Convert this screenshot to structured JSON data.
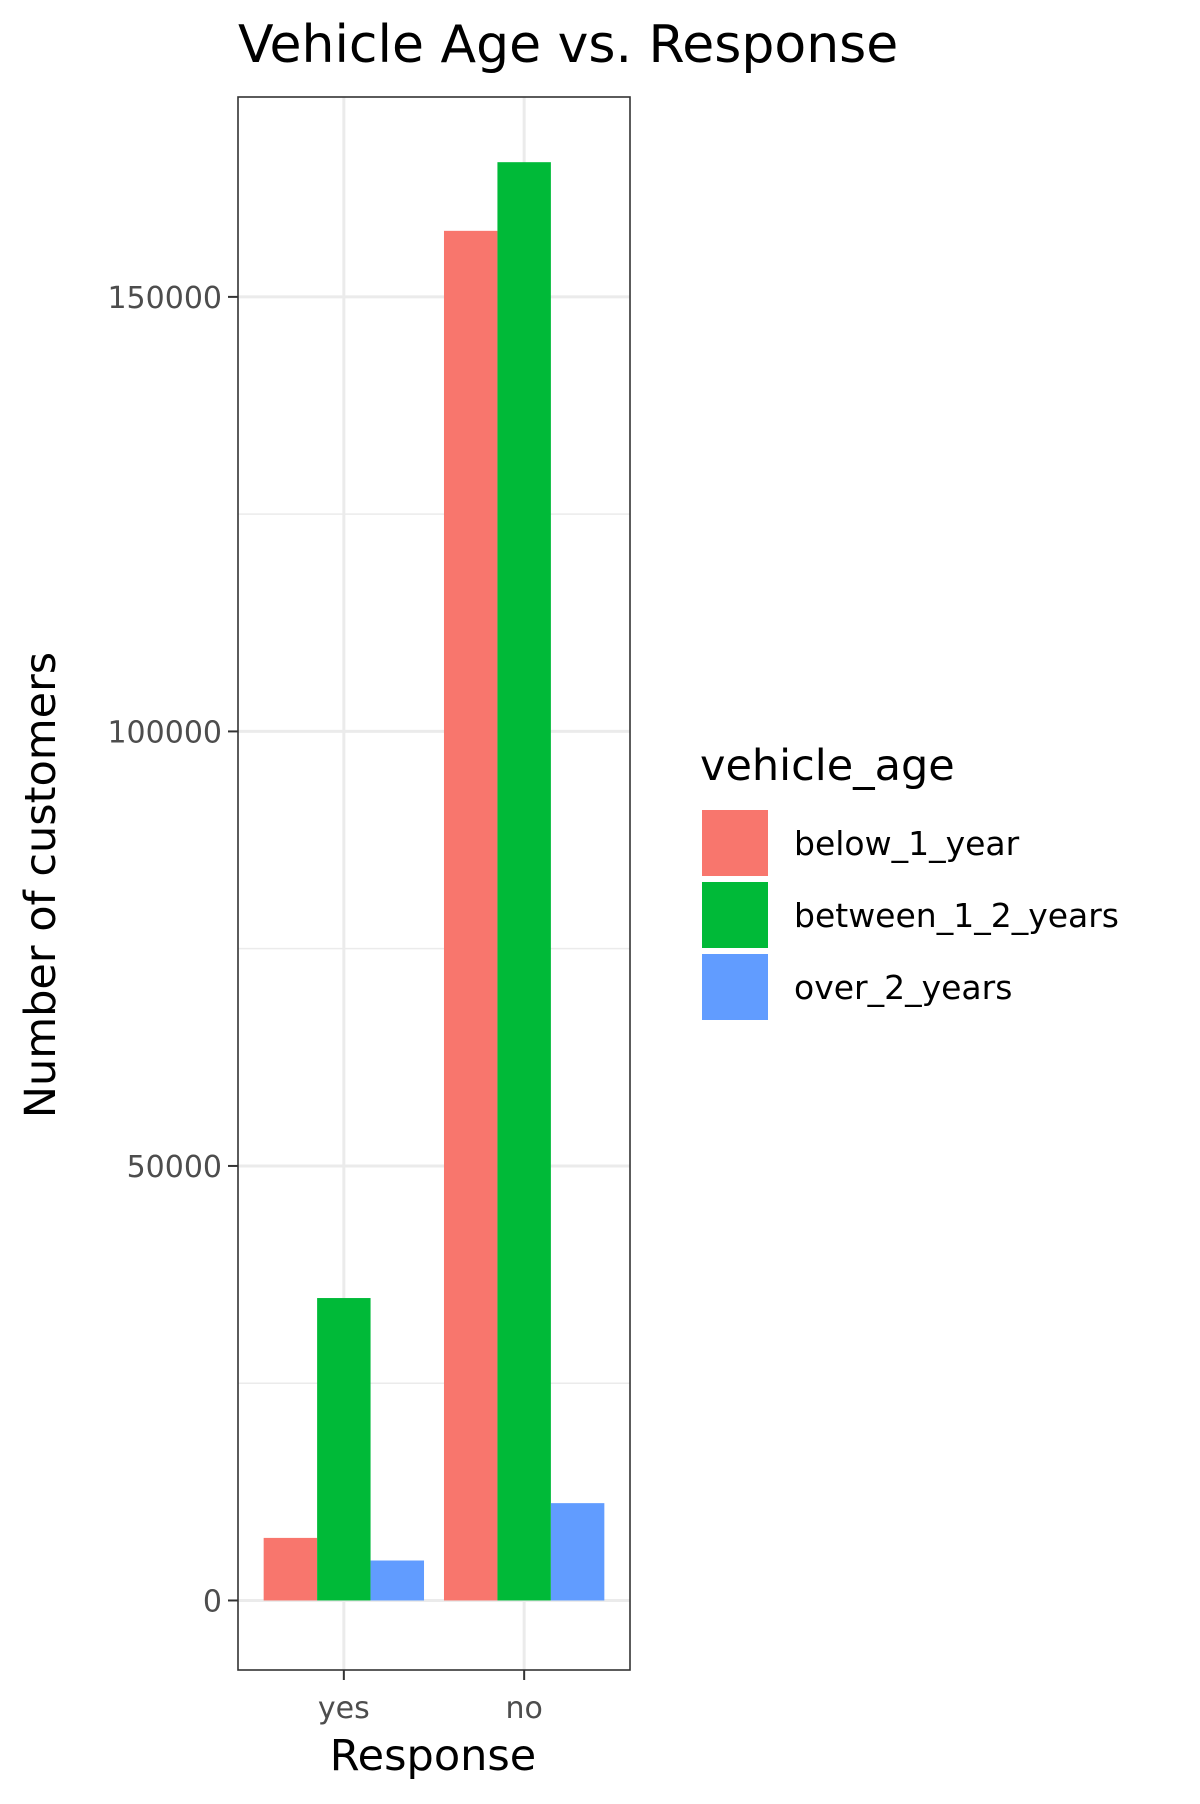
{
  "chart_data": {
    "type": "bar",
    "title": "Vehicle Age vs. Response",
    "xlabel": "Response",
    "ylabel": "Number of customers",
    "categories": [
      "yes",
      "no"
    ],
    "series": [
      {
        "name": "below_1_year",
        "color": "#F8766D",
        "values": [
          7200,
          157600
        ]
      },
      {
        "name": "between_1_2_years",
        "color": "#00BA38",
        "values": [
          34800,
          165500
        ]
      },
      {
        "name": "over_2_years",
        "color": "#619CFF",
        "values": [
          4600,
          11200
        ]
      }
    ],
    "y_ticks": [
      0,
      50000,
      100000,
      150000
    ],
    "y_tick_labels": [
      "0",
      "50000",
      "100000",
      "150000"
    ],
    "ylim": [
      -8000,
      173000
    ],
    "legend": {
      "title": "vehicle_age",
      "position": "right"
    },
    "grid": true
  }
}
